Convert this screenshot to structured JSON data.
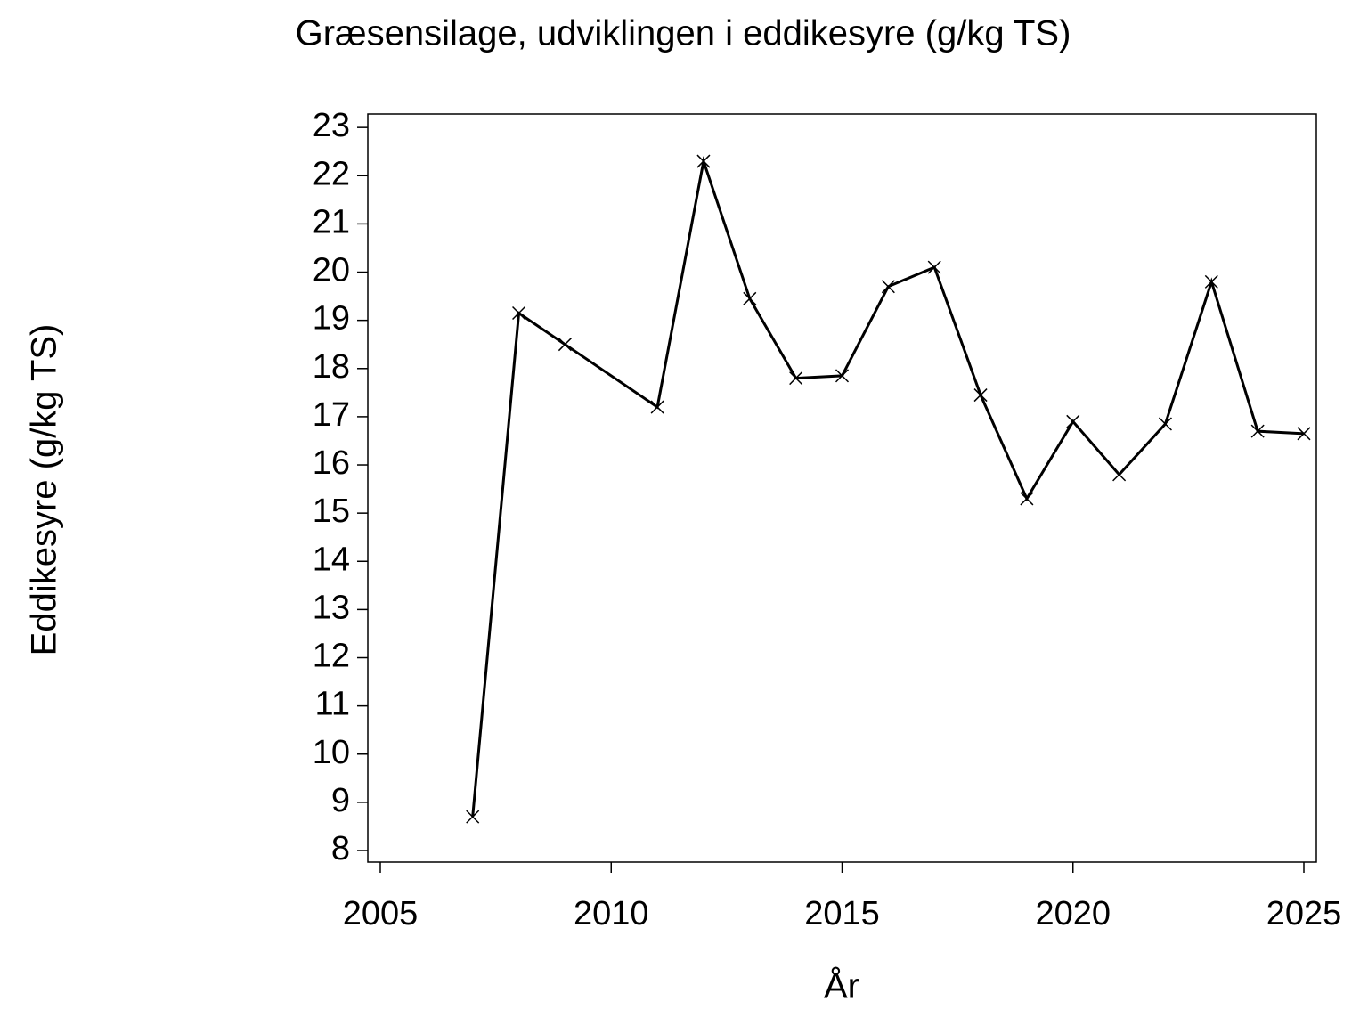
{
  "chart_data": {
    "type": "line",
    "title": "Græsensilage,  udviklingen  i  eddikesyre  (g/kg  TS)",
    "x_label": "År",
    "y_label": "Eddikesyre  (g/kg  TS)",
    "x": [
      2007,
      2008,
      2009,
      2011,
      2012,
      2013,
      2014,
      2015,
      2016,
      2017,
      2018,
      2019,
      2020,
      2021,
      2022,
      2023,
      2024,
      2025
    ],
    "series": [
      {
        "color": "#000000",
        "values": [
          8.7,
          19.15,
          18.5,
          17.2,
          22.3,
          19.45,
          17.8,
          17.85,
          19.7,
          20.1,
          17.45,
          15.3,
          16.9,
          15.8,
          16.85,
          19.8,
          16.7,
          16.65
        ]
      }
    ],
    "xlim": [
      2004.73,
      2025.27
    ],
    "ylim": [
      7.76,
      23.28
    ],
    "xticks": [
      2005,
      2010,
      2015,
      2020,
      2025
    ],
    "yticks": [
      8,
      9,
      10,
      11,
      12,
      13,
      14,
      15,
      16,
      17,
      18,
      19,
      20,
      21,
      22,
      23
    ],
    "grid": false
  }
}
